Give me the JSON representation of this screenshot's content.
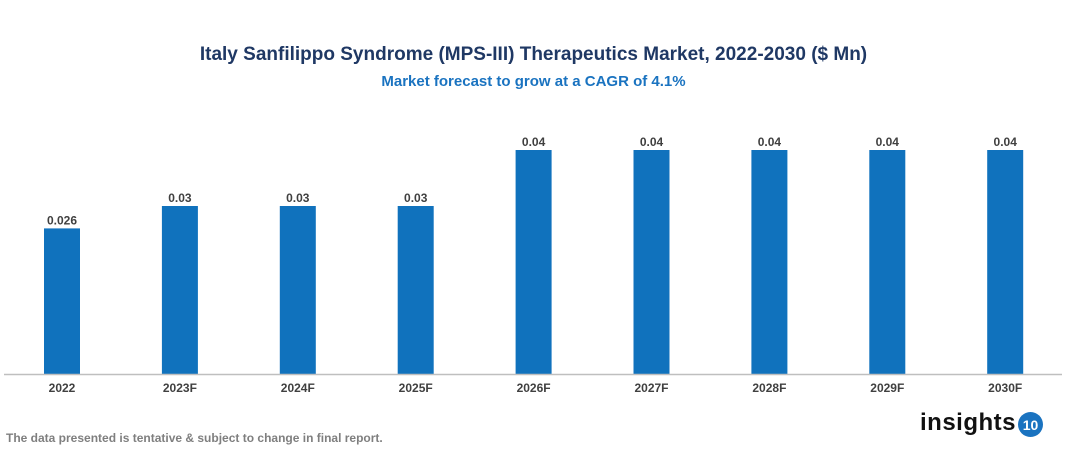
{
  "chart_data": {
    "type": "bar",
    "title": "Italy Sanfilippo Syndrome (MPS-III) Therapeutics Market, 2022-2030 ($ Mn)",
    "subtitle": "Market forecast to grow at a CAGR of 4.1%",
    "categories": [
      "2022",
      "2023F",
      "2024F",
      "2025F",
      "2026F",
      "2027F",
      "2028F",
      "2029F",
      "2030F"
    ],
    "values": [
      0.026,
      0.03,
      0.03,
      0.03,
      0.04,
      0.04,
      0.04,
      0.04,
      0.04
    ],
    "data_labels": [
      "0.026",
      "0.03",
      "0.03",
      "0.03",
      "0.04",
      "0.04",
      "0.04",
      "0.04",
      "0.04"
    ],
    "xlabel": "",
    "ylabel": "",
    "ylim": [
      0,
      0.04
    ],
    "grid": false,
    "y_axis_visible": false,
    "bar_color": "#1072bd",
    "title_color": "#1f3864",
    "subtitle_color": "#1a73c0"
  },
  "footnote": "The data presented is tentative & subject to change in final report.",
  "logo": {
    "text": "insights",
    "badge": "10"
  }
}
